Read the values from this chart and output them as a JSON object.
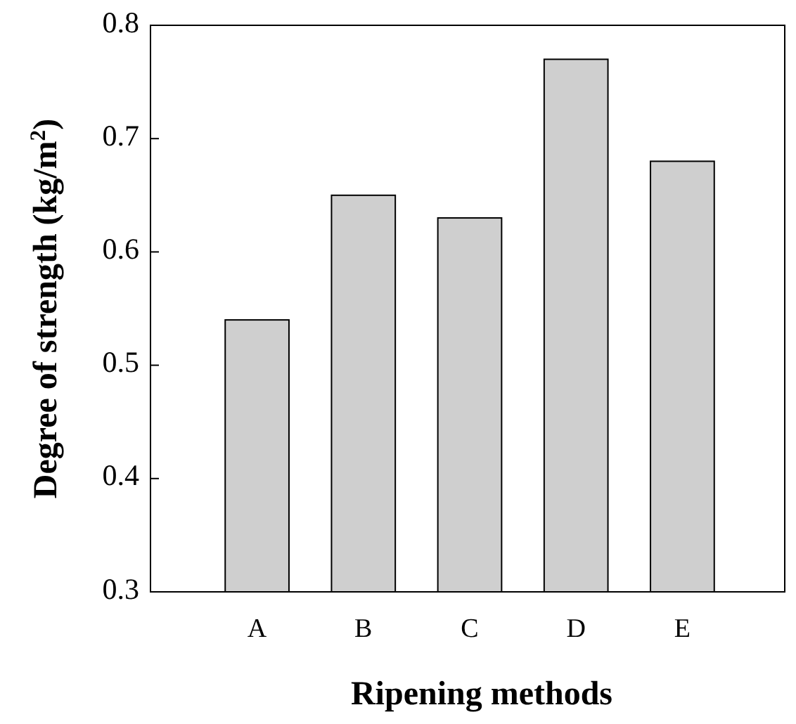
{
  "chart_data": {
    "type": "bar",
    "xlabel": "Ripening methods",
    "ylabel": "Degree of strength (kg/m$^{2}$)",
    "categories": [
      "A",
      "B",
      "C",
      "D",
      "E"
    ],
    "values": [
      0.54,
      0.65,
      0.63,
      0.77,
      0.68
    ],
    "color": "#cfcfcf",
    "ylim": [
      0.3,
      0.8
    ],
    "yticks": [
      0.3,
      0.4,
      0.5,
      0.6,
      0.7,
      0.8
    ],
    "grid": false
  }
}
